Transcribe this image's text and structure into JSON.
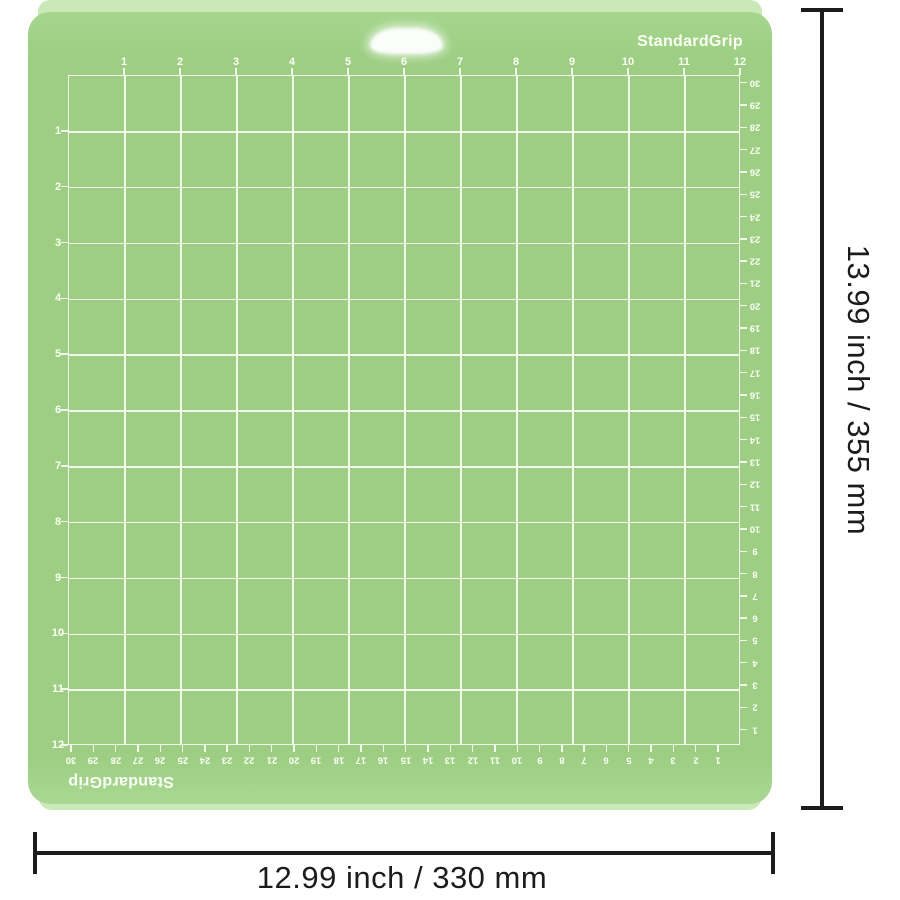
{
  "product": {
    "name": "StandardGrip cutting mat",
    "brand_top": "StandardGrip",
    "brand_bottom": "StandardGrip"
  },
  "dimensions": {
    "height_label": "13.99 inch / 355 mm",
    "width_label": "12.99 inch / 330 mm"
  },
  "grid": {
    "columns": 12,
    "rows": 12,
    "cm_marks": 30
  },
  "rulers": {
    "top_inches": [
      1,
      2,
      3,
      4,
      5,
      6,
      7,
      8,
      9,
      10,
      11,
      12
    ],
    "left_inches": [
      1,
      2,
      3,
      4,
      5,
      6,
      7,
      8,
      9,
      10,
      11,
      12
    ],
    "right_cm": [
      30,
      29,
      28,
      27,
      26,
      25,
      24,
      23,
      22,
      21,
      20,
      19,
      18,
      17,
      16,
      15,
      14,
      13,
      12,
      11,
      10,
      9,
      8,
      7,
      6,
      5,
      4,
      3,
      2,
      1
    ],
    "bottom_cm": [
      30,
      29,
      28,
      27,
      26,
      25,
      24,
      23,
      22,
      21,
      20,
      19,
      18,
      17,
      16,
      15,
      14,
      13,
      12,
      11,
      10,
      9,
      8,
      7,
      6,
      5,
      4,
      3,
      2,
      1
    ]
  },
  "colors": {
    "page_bg": "#ffffff",
    "mat_green": "#9dce83",
    "mat_edge_light": "#c9e9b6",
    "grid_line": "#f2fae9",
    "label_white": "#fbfff5",
    "dimension_dark": "#1c1c1c"
  }
}
